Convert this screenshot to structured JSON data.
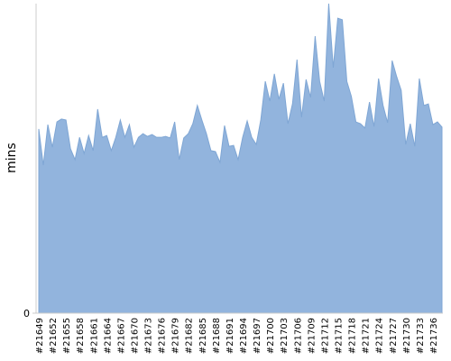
{
  "chart_data": {
    "type": "area",
    "y_label": "mins",
    "color": "#92b4dd",
    "ylim": [
      0,
      100
    ],
    "yticks": [
      0
    ],
    "categories": [
      "#21649",
      null,
      null,
      "#21652",
      null,
      null,
      "#21655",
      null,
      null,
      "#21658",
      null,
      null,
      "#21661",
      null,
      null,
      "#21664",
      null,
      null,
      "#21667",
      null,
      null,
      "#21670",
      null,
      null,
      "#21673",
      null,
      null,
      "#21676",
      null,
      null,
      "#21679",
      null,
      null,
      "#21682",
      null,
      null,
      "#21685",
      null,
      null,
      "#21688",
      null,
      null,
      "#21691",
      null,
      null,
      "#21694",
      null,
      null,
      "#21697",
      null,
      null,
      "#21700",
      null,
      null,
      "#21703",
      null,
      null,
      "#21706",
      null,
      null,
      "#21709",
      null,
      null,
      "#21712",
      null,
      null,
      "#21715",
      null,
      null,
      "#21718",
      null,
      null,
      "#21721",
      null,
      null,
      "#21724",
      null,
      null,
      "#21727",
      null,
      null,
      "#21730",
      null,
      null,
      "#21733",
      null,
      null,
      "#21736",
      null,
      null
    ],
    "values": [
      59.5,
      47.8,
      60.9,
      53.6,
      61.8,
      62.7,
      62.4,
      53.1,
      49.6,
      56.8,
      51.6,
      57.4,
      52.5,
      65.9,
      56.8,
      57.4,
      52.5,
      56.8,
      62.4,
      56.8,
      60.9,
      53.6,
      56.8,
      58.0,
      57.1,
      57.7,
      56.8,
      56.8,
      57.1,
      56.6,
      61.8,
      49.6,
      56.6,
      58.0,
      61.2,
      67.1,
      62.4,
      58.0,
      52.5,
      52.2,
      48.7,
      60.6,
      53.9,
      54.2,
      49.6,
      56.8,
      62.1,
      56.8,
      54.5,
      62.4,
      74.9,
      68.5,
      77.3,
      69.1,
      74.3,
      61.2,
      67.6,
      81.9,
      63.3,
      75.5,
      69.7,
      89.5,
      74.9,
      68.5,
      100,
      79.3,
      95.3,
      94.8,
      74.9,
      70.0,
      61.8,
      61.2,
      59.8,
      68.2,
      60.3,
      75.8,
      67.1,
      61.5,
      81.6,
      76.4,
      72.0,
      54.5,
      61.2,
      53.9,
      75.8,
      67.1,
      67.6,
      60.9,
      61.8,
      60.1
    ]
  }
}
